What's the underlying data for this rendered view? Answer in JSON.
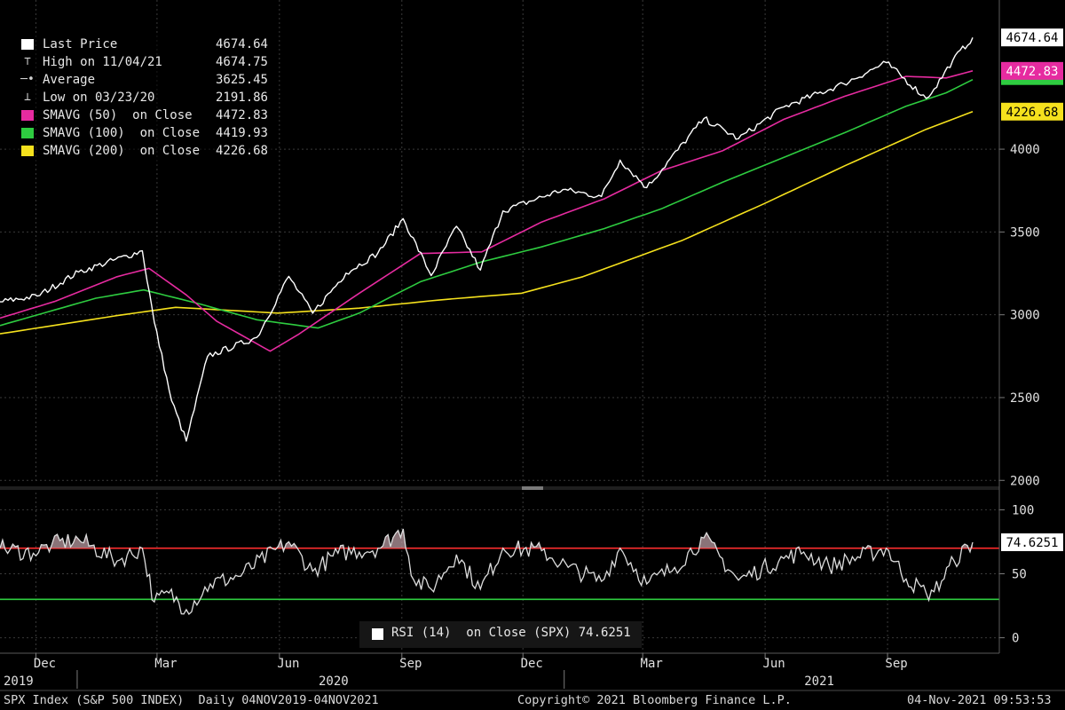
{
  "legend": [
    {
      "label": "Last Price",
      "value": "4674.64",
      "marker": "white-square",
      "color": "#ffffff"
    },
    {
      "label": "High on 11/04/21",
      "value": "4674.75",
      "marker": "high-tick-glyph",
      "color": "#cfcfcf"
    },
    {
      "label": "Average",
      "value": "3625.45",
      "marker": "average-dash-glyph",
      "color": "#cfcfcf"
    },
    {
      "label": "Low on 03/23/20",
      "value": "2191.86",
      "marker": "low-tick-glyph",
      "color": "#cfcfcf"
    },
    {
      "label": "SMAVG (50)  on Close",
      "value": "4472.83",
      "marker": "magenta-square",
      "color": "#e62ba0"
    },
    {
      "label": "SMAVG (100)  on Close",
      "value": "4419.93",
      "marker": "green-square",
      "color": "#2ecc40"
    },
    {
      "label": "SMAVG (200)  on Close",
      "value": "4226.68",
      "marker": "yellow-square",
      "color": "#f5e11d"
    }
  ],
  "price_tags": [
    {
      "value": "4674.64",
      "bg": "#ffffff",
      "fg": "#000000"
    },
    {
      "value": "4472.83",
      "bg": "#e62ba0",
      "fg": "#ffffff"
    },
    {
      "value": "4226.68",
      "bg": "#f5e11d",
      "fg": "#000000"
    }
  ],
  "rsi_tag": {
    "value": "74.6251",
    "bg": "#ffffff",
    "fg": "#000000"
  },
  "rsi_legend": {
    "label": "RSI (14)  on Close (SPX) 74.6251"
  },
  "footer": {
    "left": "SPX Index (S&P 500 INDEX)  Daily 04NOV2019-04NOV2021",
    "center": "Copyright© 2021 Bloomberg Finance L.P.",
    "right": "04-Nov-2021 09:53:53"
  },
  "colors": {
    "price": "#ffffff",
    "sma50": "#e62ba0",
    "sma100": "#2ecc40",
    "sma200": "#f5e11d",
    "rsi": "#dddddd",
    "rsi_upper": "#ff2a2a",
    "rsi_lower": "#2ecc40",
    "grid": "#3a3a3a"
  },
  "chart_data": [
    {
      "type": "line",
      "title": "",
      "yticks": [
        2000,
        2500,
        3000,
        3500,
        4000
      ],
      "ylim": [
        1980,
        4740
      ],
      "grid": true,
      "xlim": [
        "2019-11-04",
        "2021-11-04"
      ],
      "x_month_ticks": [
        {
          "date": "2019-12-01",
          "label": "Dec"
        },
        {
          "date": "2020-03-01",
          "label": "Mar"
        },
        {
          "date": "2020-06-01",
          "label": "Jun"
        },
        {
          "date": "2020-09-01",
          "label": "Sep"
        },
        {
          "date": "2020-12-01",
          "label": "Dec"
        },
        {
          "date": "2021-03-01",
          "label": "Mar"
        },
        {
          "date": "2021-06-01",
          "label": "Jun"
        },
        {
          "date": "2021-09-01",
          "label": "Sep"
        }
      ],
      "x_year_labels": [
        {
          "date": "2019-11-04",
          "label": "2019"
        },
        {
          "date": "2020-07-01",
          "label": "2020"
        },
        {
          "date": "2021-07-01",
          "label": "2021"
        }
      ],
      "series": [
        {
          "name": "Last Price",
          "x": [
            "2019-11-04",
            "2019-12-02",
            "2020-01-02",
            "2020-02-19",
            "2020-02-28",
            "2020-03-12",
            "2020-03-23",
            "2020-04-08",
            "2020-05-15",
            "2020-06-08",
            "2020-06-26",
            "2020-07-21",
            "2020-08-14",
            "2020-09-02",
            "2020-09-23",
            "2020-10-12",
            "2020-10-30",
            "2020-11-16",
            "2020-12-31",
            "2021-01-29",
            "2021-02-12",
            "2021-03-04",
            "2021-04-16",
            "2021-05-12",
            "2021-06-15",
            "2021-07-30",
            "2021-08-31",
            "2021-09-30",
            "2021-10-06",
            "2021-10-20",
            "2021-11-04"
          ],
          "values": [
            3078,
            3113,
            3258,
            3386,
            2954,
            2480,
            2237,
            2749,
            2863,
            3232,
            3009,
            3251,
            3373,
            3580,
            3237,
            3534,
            3270,
            3627,
            3756,
            3714,
            3934,
            3768,
            4185,
            4063,
            4255,
            4395,
            4523,
            4307,
            4363,
            4536,
            4674
          ]
        },
        {
          "name": "SMAVG (50)  on Close",
          "x": [
            "2019-11-04",
            "2019-12-15",
            "2020-01-31",
            "2020-02-24",
            "2020-03-23",
            "2020-04-15",
            "2020-05-25",
            "2020-06-15",
            "2020-07-31",
            "2020-09-15",
            "2020-10-31",
            "2020-12-15",
            "2021-01-31",
            "2021-03-15",
            "2021-04-30",
            "2021-06-15",
            "2021-07-31",
            "2021-09-15",
            "2021-10-15",
            "2021-11-04"
          ],
          "values": [
            2980,
            3080,
            3230,
            3280,
            3120,
            2960,
            2780,
            2880,
            3130,
            3370,
            3380,
            3560,
            3700,
            3870,
            3990,
            4180,
            4320,
            4440,
            4430,
            4473
          ]
        },
        {
          "name": "SMAVG (100)  on Close",
          "x": [
            "2019-11-04",
            "2020-01-15",
            "2020-02-20",
            "2020-03-31",
            "2020-05-15",
            "2020-06-30",
            "2020-07-31",
            "2020-09-15",
            "2020-10-31",
            "2020-12-15",
            "2021-01-31",
            "2021-03-15",
            "2021-04-30",
            "2021-06-15",
            "2021-07-31",
            "2021-09-15",
            "2021-10-15",
            "2021-11-04"
          ],
          "values": [
            2935,
            3100,
            3150,
            3070,
            2970,
            2920,
            3010,
            3200,
            3320,
            3410,
            3520,
            3640,
            3800,
            3950,
            4100,
            4260,
            4340,
            4420
          ]
        },
        {
          "name": "SMAVG (200)  on Close",
          "x": [
            "2019-11-04",
            "2020-01-31",
            "2020-03-15",
            "2020-05-31",
            "2020-07-31",
            "2020-09-30",
            "2020-11-30",
            "2021-01-15",
            "2021-03-31",
            "2021-05-31",
            "2021-07-31",
            "2021-09-30",
            "2021-11-04"
          ],
          "values": [
            2885,
            2995,
            3045,
            3010,
            3040,
            3090,
            3130,
            3230,
            3450,
            3670,
            3900,
            4120,
            4227
          ]
        }
      ]
    },
    {
      "type": "line",
      "title": "",
      "yticks": [
        0,
        50,
        100
      ],
      "ylim": [
        -10,
        110
      ],
      "reference_lines": [
        {
          "value": 70,
          "color": "#ff2a2a"
        },
        {
          "value": 30,
          "color": "#2ecc40"
        }
      ],
      "series": [
        {
          "name": "RSI (14)  on Close (SPX)",
          "x": [
            "2019-11-04",
            "2019-11-29",
            "2019-12-13",
            "2020-01-02",
            "2020-01-31",
            "2020-02-19",
            "2020-02-28",
            "2020-03-10",
            "2020-03-23",
            "2020-04-10",
            "2020-05-01",
            "2020-06-08",
            "2020-06-26",
            "2020-07-15",
            "2020-08-14",
            "2020-09-02",
            "2020-09-10",
            "2020-09-23",
            "2020-10-12",
            "2020-10-30",
            "2020-11-16",
            "2020-12-15",
            "2021-01-04",
            "2021-01-29",
            "2021-02-12",
            "2021-03-04",
            "2021-03-25",
            "2021-04-16",
            "2021-05-12",
            "2021-06-15",
            "2021-06-30",
            "2021-07-19",
            "2021-08-31",
            "2021-09-15",
            "2021-09-30",
            "2021-10-06",
            "2021-10-21",
            "2021-11-04"
          ],
          "values": [
            70,
            66,
            73,
            77,
            60,
            70,
            28,
            35,
            22,
            42,
            48,
            75,
            52,
            66,
            70,
            85,
            45,
            38,
            65,
            38,
            70,
            68,
            55,
            44,
            70,
            42,
            55,
            78,
            45,
            62,
            67,
            56,
            70,
            46,
            35,
            36,
            60,
            74.6251
          ]
        }
      ]
    }
  ]
}
